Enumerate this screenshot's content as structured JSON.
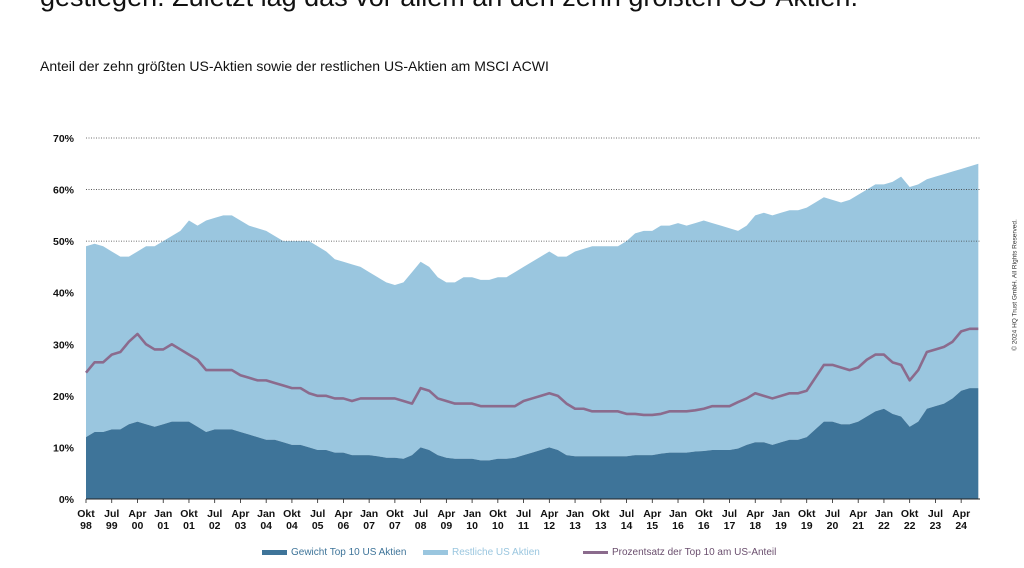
{
  "headline": "gestiegen. Zuletzt lag das vor allem an den zehn größten US-Aktien.",
  "copyright": "© 2024 HQ Trust GmbH. All Rights Reserved.",
  "colors": {
    "top10": "#3e7499",
    "rest": "#9ac6df",
    "line": "#8b6b8d",
    "grid": "#444444"
  },
  "chart_data": {
    "type": "area",
    "title": "Anteil der zehn größten US-Aktien sowie der restlichen US-Aktien am MSCI ACWI",
    "ylim": [
      0,
      70
    ],
    "yticks": [
      "0%",
      "10%",
      "20%",
      "30%",
      "40%",
      "50%",
      "60%",
      "70%"
    ],
    "grid": "horizontal dotted at 50%, 60%, 70%",
    "legend_position": "bottom",
    "xtick_labels": [
      [
        "Okt",
        "98"
      ],
      [
        "Jul",
        "99"
      ],
      [
        "Apr",
        "00"
      ],
      [
        "Jan",
        "01"
      ],
      [
        "Okt",
        "01"
      ],
      [
        "Jul",
        "02"
      ],
      [
        "Apr",
        "03"
      ],
      [
        "Jan",
        "04"
      ],
      [
        "Okt",
        "04"
      ],
      [
        "Jul",
        "05"
      ],
      [
        "Apr",
        "06"
      ],
      [
        "Jan",
        "07"
      ],
      [
        "Okt",
        "07"
      ],
      [
        "Jul",
        "08"
      ],
      [
        "Apr",
        "09"
      ],
      [
        "Jan",
        "10"
      ],
      [
        "Okt",
        "10"
      ],
      [
        "Jul",
        "11"
      ],
      [
        "Apr",
        "12"
      ],
      [
        "Jan",
        "13"
      ],
      [
        "Okt",
        "13"
      ],
      [
        "Jul",
        "14"
      ],
      [
        "Apr",
        "15"
      ],
      [
        "Jan",
        "16"
      ],
      [
        "Okt",
        "16"
      ],
      [
        "Jul",
        "17"
      ],
      [
        "Apr",
        "18"
      ],
      [
        "Jan",
        "19"
      ],
      [
        "Okt",
        "19"
      ],
      [
        "Jul",
        "20"
      ],
      [
        "Apr",
        "21"
      ],
      [
        "Jan",
        "22"
      ],
      [
        "Okt",
        "22"
      ],
      [
        "Jul",
        "23"
      ],
      [
        "Apr",
        "24"
      ]
    ],
    "x": [
      "1998-10",
      "1999-01",
      "1999-04",
      "1999-07",
      "1999-10",
      "2000-01",
      "2000-04",
      "2000-07",
      "2000-10",
      "2001-01",
      "2001-04",
      "2001-07",
      "2001-10",
      "2002-01",
      "2002-04",
      "2002-07",
      "2002-10",
      "2003-01",
      "2003-04",
      "2003-07",
      "2003-10",
      "2004-01",
      "2004-04",
      "2004-07",
      "2004-10",
      "2005-01",
      "2005-04",
      "2005-07",
      "2005-10",
      "2006-01",
      "2006-04",
      "2006-07",
      "2006-10",
      "2007-01",
      "2007-04",
      "2007-07",
      "2007-10",
      "2008-01",
      "2008-04",
      "2008-07",
      "2008-10",
      "2009-01",
      "2009-04",
      "2009-07",
      "2009-10",
      "2010-01",
      "2010-04",
      "2010-07",
      "2010-10",
      "2011-01",
      "2011-04",
      "2011-07",
      "2011-10",
      "2012-01",
      "2012-04",
      "2012-07",
      "2012-10",
      "2013-01",
      "2013-04",
      "2013-07",
      "2013-10",
      "2014-01",
      "2014-04",
      "2014-07",
      "2014-10",
      "2015-01",
      "2015-04",
      "2015-07",
      "2015-10",
      "2016-01",
      "2016-04",
      "2016-07",
      "2016-10",
      "2017-01",
      "2017-04",
      "2017-07",
      "2017-10",
      "2018-01",
      "2018-04",
      "2018-07",
      "2018-10",
      "2019-01",
      "2019-04",
      "2019-07",
      "2019-10",
      "2020-01",
      "2020-04",
      "2020-07",
      "2020-10",
      "2021-01",
      "2021-04",
      "2021-07",
      "2021-10",
      "2022-01",
      "2022-04",
      "2022-07",
      "2022-10",
      "2023-01",
      "2023-04",
      "2023-07",
      "2023-10",
      "2024-01",
      "2024-04",
      "2024-07",
      "2024-10"
    ],
    "series": [
      {
        "name": "Gewicht Top 10 US Aktien",
        "kind": "area",
        "values": [
          12,
          13,
          13,
          13.5,
          13.5,
          14.5,
          15,
          14.5,
          14,
          14.5,
          15,
          15,
          15,
          14,
          13,
          13.5,
          13.5,
          13.5,
          13,
          12.5,
          12,
          11.5,
          11.5,
          11,
          10.5,
          10.5,
          10,
          9.5,
          9.5,
          9,
          9,
          8.5,
          8.5,
          8.5,
          8.3,
          8,
          8,
          7.8,
          8.5,
          10,
          9.5,
          8.5,
          8,
          7.8,
          7.8,
          7.8,
          7.5,
          7.5,
          7.8,
          7.8,
          8,
          8.5,
          9,
          9.5,
          10,
          9.5,
          8.5,
          8.3,
          8.3,
          8.3,
          8.3,
          8.3,
          8.3,
          8.3,
          8.5,
          8.5,
          8.5,
          8.8,
          9,
          9,
          9,
          9.2,
          9.3,
          9.5,
          9.5,
          9.5,
          9.8,
          10.5,
          11,
          11,
          10.5,
          11,
          11.5,
          11.5,
          12,
          13.5,
          15,
          15,
          14.5,
          14.5,
          15,
          16,
          17,
          17.5,
          16.5,
          16,
          14,
          15,
          17.5,
          18,
          18.5,
          19.5,
          21,
          21.5,
          21.5
        ]
      },
      {
        "name": "Restliche US Aktien",
        "kind": "area-stacked-total",
        "total_values": [
          49,
          49.5,
          49,
          48,
          47,
          47,
          48,
          49,
          49,
          50,
          51,
          52,
          54,
          53,
          54,
          54.5,
          55,
          55,
          54,
          53,
          52.5,
          52,
          51,
          50,
          50,
          50,
          50,
          49,
          48,
          46.5,
          46,
          45.5,
          45,
          44,
          43,
          42,
          41.5,
          42,
          44,
          46,
          45,
          43,
          42,
          42,
          43,
          43,
          42.5,
          42.5,
          43,
          43,
          44,
          45,
          46,
          47,
          48,
          47,
          47,
          48,
          48.5,
          49,
          49,
          49,
          49,
          50,
          51.5,
          52,
          52,
          53,
          53,
          53.5,
          53,
          53.5,
          54,
          53.5,
          53,
          52.5,
          52,
          53,
          55,
          55.5,
          55,
          55.5,
          56,
          56,
          56.5,
          57.5,
          58.5,
          58,
          57.5,
          58,
          59,
          60,
          61,
          61,
          61.5,
          62.5,
          60.5,
          61,
          62,
          62.5,
          63,
          63.5,
          64,
          64.5,
          65
        ]
      },
      {
        "name": "Prozentsatz der Top 10 am US-Anteil",
        "kind": "line",
        "values": [
          24.5,
          26.5,
          26.5,
          28,
          28.5,
          30.5,
          32,
          30,
          29,
          29,
          30,
          29,
          28,
          27,
          25,
          25,
          25,
          25,
          24,
          23.5,
          23,
          23,
          22.5,
          22,
          21.5,
          21.5,
          20.5,
          20,
          20,
          19.5,
          19.5,
          19,
          19.5,
          19.5,
          19.5,
          19.5,
          19.5,
          19,
          18.5,
          21.5,
          21,
          19.5,
          19,
          18.5,
          18.5,
          18.5,
          18,
          18,
          18,
          18,
          18,
          19,
          19.5,
          20,
          20.5,
          20,
          18.5,
          17.5,
          17.5,
          17,
          17,
          17,
          17,
          16.5,
          16.5,
          16.3,
          16.3,
          16.5,
          17,
          17,
          17,
          17.2,
          17.5,
          18,
          18,
          18,
          18.8,
          19.5,
          20.5,
          20,
          19.5,
          20,
          20.5,
          20.5,
          21,
          23.5,
          26,
          26,
          25.5,
          25,
          25.5,
          27,
          28,
          28,
          26.5,
          26,
          23,
          25,
          28.5,
          29,
          29.5,
          30.5,
          32.5,
          33,
          33
        ]
      }
    ]
  }
}
